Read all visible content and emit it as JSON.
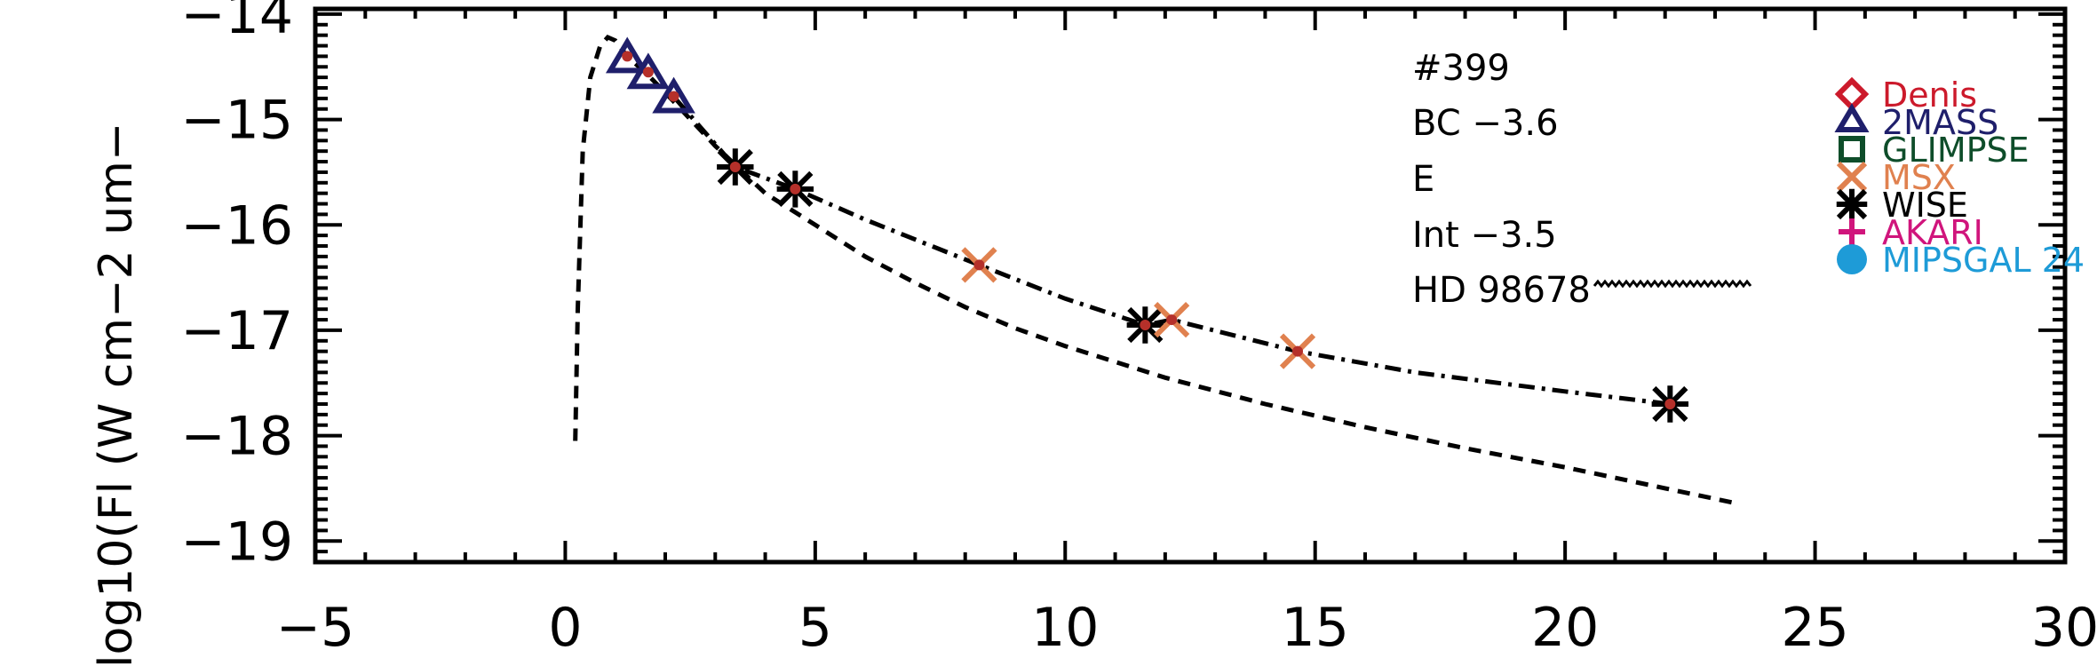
{
  "chart_data": {
    "type": "scatter",
    "title": "",
    "xlabel": "",
    "ylabel": "log10(Fl (W cm−2 um−",
    "xlim": [
      -5,
      30
    ],
    "ylim": [
      -19.2,
      -13.95
    ],
    "x_ticks": [
      -5,
      0,
      5,
      10,
      15,
      20,
      25,
      30
    ],
    "x_tick_labels": [
      "−5",
      "0",
      "5",
      "10",
      "15",
      "20",
      "25",
      "30"
    ],
    "y_ticks": [
      -19,
      -18,
      -17,
      -16,
      -15,
      -14
    ],
    "y_tick_labels": [
      "−19",
      "−18",
      "−17",
      "−16",
      "−15",
      "−14"
    ],
    "annotations": [
      "#399",
      "BC −3.6",
      "E",
      "Int −3.5",
      "HD 98678"
    ],
    "legend": {
      "placement": "right",
      "entries": [
        {
          "label": "Denis",
          "marker": "diamond",
          "color": "#cc1a2b"
        },
        {
          "label": "2MASS",
          "marker": "triangle",
          "color": "#1f1f6b"
        },
        {
          "label": "GLIMPSE",
          "marker": "square",
          "color": "#0e4d2a"
        },
        {
          "label": "MSX",
          "marker": "x",
          "color": "#e0814f"
        },
        {
          "label": "WISE",
          "marker": "asterisk",
          "color": "#000000"
        },
        {
          "label": "AKARI",
          "marker": "plus",
          "color": "#d0157c"
        },
        {
          "label": "MIPSGAL 24",
          "marker": "circle",
          "color": "#1e9bd7"
        }
      ]
    },
    "series": [
      {
        "name": "2MASS",
        "marker": "triangle",
        "color": "#1f1f6b",
        "x": [
          1.24,
          1.66,
          2.17
        ],
        "y": [
          -14.4,
          -14.55,
          -14.78
        ]
      },
      {
        "name": "WISE",
        "marker": "asterisk",
        "color": "#000000",
        "x": [
          3.4,
          4.6,
          11.6,
          22.1
        ],
        "y": [
          -15.45,
          -15.66,
          -16.95,
          -17.7
        ]
      },
      {
        "name": "MSX",
        "marker": "x",
        "color": "#e0814f",
        "x": [
          8.28,
          12.13,
          14.65
        ],
        "y": [
          -16.38,
          -16.9,
          -17.2
        ]
      }
    ],
    "photometry_points": {
      "color": "#b5302a",
      "x": [
        1.24,
        1.66,
        2.17,
        3.4,
        4.6,
        8.28,
        11.6,
        12.13,
        14.65,
        22.1
      ],
      "y": [
        -14.4,
        -14.55,
        -14.78,
        -15.45,
        -15.66,
        -16.38,
        -16.95,
        -16.9,
        -17.2,
        -17.7
      ]
    },
    "curves": [
      {
        "style": "dashed",
        "x": [
          0.2,
          0.25,
          0.35,
          0.5,
          0.7,
          0.85,
          1.0,
          1.24,
          1.66,
          2.17,
          3.0,
          4.0,
          5.0,
          6.0,
          7.0,
          8.0,
          9.0,
          10.0,
          11.0,
          12.0,
          14.0,
          16.0,
          18.0,
          20.0,
          22.0,
          23.5
        ],
        "y": [
          -18.05,
          -16.8,
          -15.3,
          -14.6,
          -14.3,
          -14.22,
          -14.25,
          -14.4,
          -14.58,
          -14.83,
          -15.25,
          -15.7,
          -16.0,
          -16.3,
          -16.55,
          -16.78,
          -16.98,
          -17.15,
          -17.3,
          -17.45,
          -17.7,
          -17.92,
          -18.12,
          -18.3,
          -18.5,
          -18.65
        ]
      },
      {
        "style": "dashdot",
        "x": [
          2.2,
          3.4,
          4.6,
          6.0,
          8.28,
          10.0,
          11.6,
          12.13,
          14.65,
          17.0,
          20.0,
          22.1
        ],
        "y": [
          -14.8,
          -15.45,
          -15.66,
          -15.95,
          -16.38,
          -16.7,
          -16.95,
          -16.9,
          -17.2,
          -17.4,
          -17.58,
          -17.7
        ]
      }
    ],
    "grid": false
  }
}
